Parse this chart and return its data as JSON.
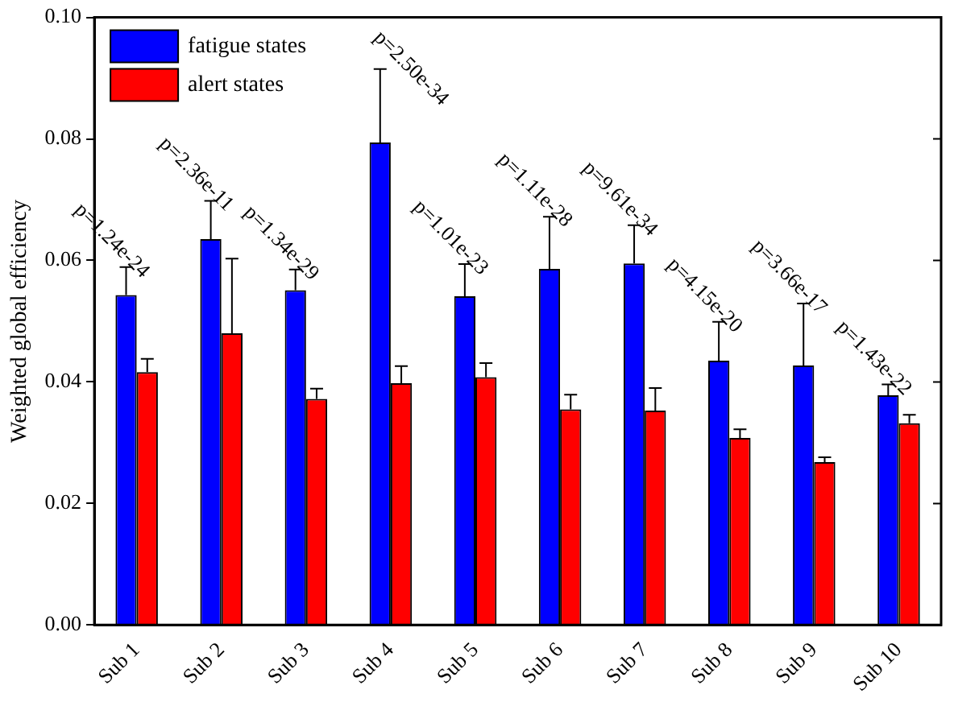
{
  "chart_data": {
    "type": "bar",
    "ylabel": "Weighted global efficiency",
    "categories": [
      "Sub 1",
      "Sub 2",
      "Sub 3",
      "Sub 4",
      "Sub 5",
      "Sub 6",
      "Sub 7",
      "Sub 8",
      "Sub 9",
      "Sub 10"
    ],
    "series": [
      {
        "name": "fatigue states",
        "color": "#0000ff",
        "values": [
          0.0543,
          0.0635,
          0.0551,
          0.0794,
          0.0541,
          0.0586,
          0.0595,
          0.0435,
          0.0427,
          0.0378
        ],
        "errors": [
          [
            0.0543,
            0.0589
          ],
          [
            0.0635,
            0.0698
          ],
          [
            0.0551,
            0.0585
          ],
          [
            0.0794,
            0.0915
          ],
          [
            0.0541,
            0.0594
          ],
          [
            0.0586,
            0.0672
          ],
          [
            0.0595,
            0.0658
          ],
          [
            0.0435,
            0.0499
          ],
          [
            0.0427,
            0.0529
          ],
          [
            0.0378,
            0.0396
          ]
        ]
      },
      {
        "name": "alert states",
        "color": "#ff0000",
        "values": [
          0.0416,
          0.048,
          0.0372,
          0.0398,
          0.0408,
          0.0355,
          0.0353,
          0.0308,
          0.0268,
          0.0332
        ],
        "errors": [
          [
            0.0416,
            0.0438
          ],
          [
            0.048,
            0.0603
          ],
          [
            0.0372,
            0.0389
          ],
          [
            0.0398,
            0.0426
          ],
          [
            0.0408,
            0.0431
          ],
          [
            0.0355,
            0.0379
          ],
          [
            0.0353,
            0.039
          ],
          [
            0.0308,
            0.0322
          ],
          [
            0.0268,
            0.0276
          ],
          [
            0.0332,
            0.0346
          ]
        ]
      }
    ],
    "ylim": [
      0,
      0.1
    ],
    "yticks": [
      {
        "value": 0,
        "label": "0.00"
      },
      {
        "value": 0.02,
        "label": "0.02"
      },
      {
        "value": 0.04,
        "label": "0.04"
      },
      {
        "value": 0.06,
        "label": "0.06"
      },
      {
        "value": 0.08,
        "label": "0.08"
      },
      {
        "value": 0.1,
        "label": "0.10"
      }
    ],
    "legend": "top left",
    "grid": false,
    "annotations": [
      "p=1.24e-24",
      "p=2.36e-11",
      "p=1.34e-29",
      "p=2.50e-34",
      "p=1.01e-23",
      "p=1.11e-28",
      "p=9.61e-34",
      "p=4.15e-20",
      "p=3.66e-17",
      "p=1.43e-22"
    ]
  }
}
